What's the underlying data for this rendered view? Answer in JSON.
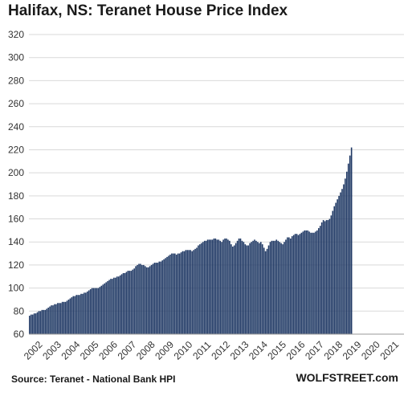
{
  "colors": {
    "bar": "#1f3864",
    "bar_edge": "#ffffff",
    "grid": "#d9d9d9"
  },
  "chart_data": {
    "type": "bar",
    "title": "Halifax, NS: Teranet House Price Index",
    "xlabel": "",
    "ylabel": "",
    "ylim": [
      60,
      320
    ],
    "yticks": [
      60,
      80,
      100,
      120,
      140,
      160,
      180,
      200,
      220,
      240,
      260,
      280,
      300,
      320
    ],
    "grid": true,
    "legend": "none",
    "year_labels": [
      "2002",
      "2003",
      "2004",
      "2005",
      "2006",
      "2007",
      "2008",
      "2009",
      "2010",
      "2011",
      "2012",
      "2013",
      "2014",
      "2015",
      "2016",
      "2017",
      "2018",
      "2019",
      "2020",
      "2021"
    ],
    "frequency": "monthly",
    "start": "2002-01",
    "values": [
      76,
      77,
      77,
      78,
      78,
      79,
      80,
      80,
      81,
      81,
      81,
      82,
      83,
      84,
      85,
      85,
      86,
      86,
      87,
      87,
      87,
      88,
      88,
      88,
      89,
      90,
      91,
      92,
      93,
      93,
      94,
      94,
      94,
      95,
      95,
      96,
      96,
      97,
      98,
      99,
      100,
      100,
      100,
      100,
      100,
      101,
      102,
      103,
      104,
      105,
      106,
      107,
      108,
      108,
      109,
      109,
      110,
      110,
      111,
      112,
      113,
      113,
      114,
      115,
      115,
      115,
      116,
      117,
      119,
      120,
      121,
      121,
      120,
      120,
      119,
      118,
      118,
      119,
      120,
      121,
      122,
      122,
      122,
      123,
      123,
      124,
      125,
      126,
      127,
      128,
      129,
      130,
      130,
      130,
      129,
      130,
      130,
      131,
      132,
      132,
      133,
      133,
      133,
      133,
      132,
      133,
      134,
      135,
      137,
      138,
      139,
      140,
      141,
      141,
      142,
      142,
      142,
      142,
      143,
      143,
      142,
      142,
      141,
      140,
      142,
      143,
      143,
      142,
      141,
      138,
      136,
      137,
      139,
      141,
      143,
      143,
      141,
      140,
      138,
      137,
      137,
      139,
      140,
      141,
      142,
      141,
      140,
      139,
      140,
      138,
      135,
      132,
      134,
      137,
      140,
      141,
      141,
      141,
      142,
      141,
      140,
      139,
      138,
      140,
      142,
      144,
      144,
      143,
      145,
      146,
      147,
      147,
      146,
      147,
      148,
      149,
      150,
      150,
      150,
      149,
      148,
      148,
      148,
      149,
      150,
      152,
      154,
      157,
      159,
      158,
      159,
      159,
      160,
      163,
      167,
      171,
      174,
      177,
      180,
      183,
      186,
      190,
      195,
      201,
      208,
      215,
      222
    ]
  },
  "footer": {
    "source": "Source: Teranet - National Bank HPI",
    "brand": "WOLFSTREET.com"
  }
}
